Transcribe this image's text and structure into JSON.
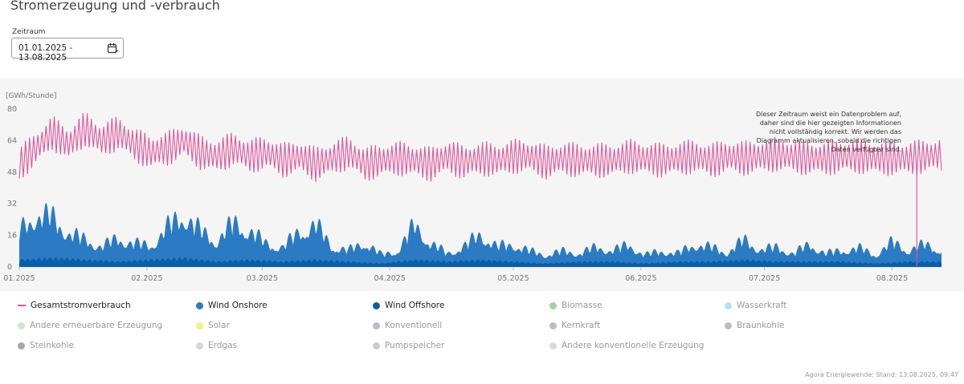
{
  "page": {
    "title": "Stromerzeugung und -verbrauch",
    "period_label": "Zeitraum",
    "period_value": "01.01.2025 - 13.08.2025",
    "footer": "Agora Energiewende; Stand: 13.08.2025, 09:47"
  },
  "chart_data": {
    "type": "area",
    "ylabel": "[GWh/Stunde]",
    "ylim": [
      0,
      80
    ],
    "yticks": [
      0,
      16,
      32,
      48,
      64,
      80
    ],
    "x_ticks": [
      "01.2025",
      "02.2025",
      "03.2025",
      "04.2025",
      "05.2025",
      "06.2025",
      "07.2025",
      "08.2025"
    ],
    "x_range": [
      "2025-01-01",
      "2025-08-13"
    ],
    "grid": false,
    "legend_position": "bottom",
    "annotation": "Dieser Zeitraum weist ein Datenproblem auf, daher sind die hier gezeigten Informationen nicht vollständig korrekt. Wir werden das Diagramm aktualisieren, sobald die richtigen Daten verfügbar sind.",
    "series": [
      {
        "name": "Gesamtstromverbrauch",
        "kind": "line",
        "color": "#e0559a",
        "values": [
          [
            0,
            52
          ],
          [
            4,
            60
          ],
          [
            8,
            68
          ],
          [
            12,
            62
          ],
          [
            16,
            70
          ],
          [
            20,
            64
          ],
          [
            24,
            68
          ],
          [
            28,
            62
          ],
          [
            32,
            58
          ],
          [
            36,
            60
          ],
          [
            40,
            64
          ],
          [
            44,
            58
          ],
          [
            48,
            56
          ],
          [
            52,
            60
          ],
          [
            56,
            56
          ],
          [
            60,
            58
          ],
          [
            64,
            54
          ],
          [
            68,
            56
          ],
          [
            72,
            52
          ],
          [
            76,
            55
          ],
          [
            80,
            58
          ],
          [
            84,
            52
          ],
          [
            88,
            54
          ],
          [
            92,
            55
          ],
          [
            96,
            54
          ],
          [
            100,
            52
          ],
          [
            104,
            56
          ],
          [
            108,
            53
          ],
          [
            112,
            55
          ],
          [
            116,
            54
          ],
          [
            120,
            56
          ],
          [
            124,
            56
          ],
          [
            128,
            53
          ],
          [
            132,
            55
          ],
          [
            136,
            54
          ],
          [
            140,
            54
          ],
          [
            144,
            54
          ],
          [
            148,
            56
          ],
          [
            152,
            55
          ],
          [
            156,
            54
          ],
          [
            160,
            55
          ],
          [
            164,
            56
          ],
          [
            168,
            54
          ],
          [
            172,
            56
          ],
          [
            176,
            55
          ],
          [
            180,
            56
          ],
          [
            184,
            57
          ],
          [
            188,
            56
          ],
          [
            192,
            55
          ],
          [
            196,
            55
          ],
          [
            200,
            56
          ],
          [
            204,
            56
          ],
          [
            208,
            55
          ],
          [
            212,
            55
          ],
          [
            216,
            55
          ],
          [
            220,
            56
          ],
          [
            224,
            57
          ]
        ]
      },
      {
        "name": "Wind Onshore",
        "kind": "area",
        "color": "#2a7bc4",
        "values": [
          [
            0,
            20
          ],
          [
            4,
            30
          ],
          [
            8,
            28
          ],
          [
            12,
            18
          ],
          [
            16,
            14
          ],
          [
            20,
            10
          ],
          [
            24,
            16
          ],
          [
            28,
            12
          ],
          [
            32,
            10
          ],
          [
            36,
            22
          ],
          [
            40,
            30
          ],
          [
            44,
            20
          ],
          [
            48,
            14
          ],
          [
            52,
            26
          ],
          [
            56,
            20
          ],
          [
            60,
            12
          ],
          [
            64,
            10
          ],
          [
            68,
            20
          ],
          [
            72,
            24
          ],
          [
            76,
            10
          ],
          [
            80,
            8
          ],
          [
            84,
            14
          ],
          [
            88,
            6
          ],
          [
            92,
            8
          ],
          [
            96,
            24
          ],
          [
            100,
            12
          ],
          [
            104,
            6
          ],
          [
            108,
            10
          ],
          [
            112,
            18
          ],
          [
            116,
            10
          ],
          [
            120,
            12
          ],
          [
            124,
            8
          ],
          [
            128,
            6
          ],
          [
            132,
            8
          ],
          [
            136,
            6
          ],
          [
            140,
            10
          ],
          [
            144,
            8
          ],
          [
            148,
            12
          ],
          [
            152,
            6
          ],
          [
            156,
            8
          ],
          [
            160,
            6
          ],
          [
            164,
            12
          ],
          [
            168,
            10
          ],
          [
            172,
            6
          ],
          [
            176,
            14
          ],
          [
            180,
            8
          ],
          [
            184,
            10
          ],
          [
            188,
            6
          ],
          [
            192,
            12
          ],
          [
            196,
            6
          ],
          [
            200,
            8
          ],
          [
            204,
            10
          ],
          [
            208,
            6
          ],
          [
            212,
            14
          ],
          [
            216,
            8
          ],
          [
            220,
            12
          ],
          [
            224,
            8
          ]
        ]
      },
      {
        "name": "Wind Offshore",
        "kind": "area",
        "color": "#0b5ea8",
        "values": [
          [
            0,
            4
          ],
          [
            8,
            5
          ],
          [
            16,
            4
          ],
          [
            24,
            3
          ],
          [
            32,
            4
          ],
          [
            40,
            5
          ],
          [
            48,
            3
          ],
          [
            56,
            4
          ],
          [
            64,
            3
          ],
          [
            72,
            4
          ],
          [
            80,
            3
          ],
          [
            88,
            2
          ],
          [
            96,
            4
          ],
          [
            104,
            3
          ],
          [
            112,
            4
          ],
          [
            120,
            3
          ],
          [
            128,
            2
          ],
          [
            136,
            3
          ],
          [
            144,
            3
          ],
          [
            152,
            2
          ],
          [
            160,
            3
          ],
          [
            168,
            3
          ],
          [
            176,
            4
          ],
          [
            184,
            3
          ],
          [
            192,
            3
          ],
          [
            200,
            3
          ],
          [
            208,
            2
          ],
          [
            216,
            3
          ],
          [
            224,
            3
          ]
        ]
      },
      {
        "name": "Biomasse",
        "kind": "area",
        "color": "#9fd3a0",
        "inactive": true
      },
      {
        "name": "Wasserkraft",
        "kind": "area",
        "color": "#b7e0f7",
        "inactive": true
      },
      {
        "name": "Andere erneuerbare Erzeugung",
        "kind": "area",
        "color": "#c9ecc6",
        "inactive": true
      },
      {
        "name": "Solar",
        "kind": "area",
        "color": "#f6ef82",
        "inactive": true
      },
      {
        "name": "Konventionell",
        "kind": "area",
        "color": "#b9bccc",
        "inactive": true
      },
      {
        "name": "Kernkraft",
        "kind": "area",
        "color": "#bdbdbd",
        "inactive": true
      },
      {
        "name": "Braunkohle",
        "kind": "area",
        "color": "#bdbdbd",
        "inactive": true
      },
      {
        "name": "Steinkohle",
        "kind": "area",
        "color": "#a8a8a8",
        "inactive": true
      },
      {
        "name": "Erdgas",
        "kind": "area",
        "color": "#d6d6d6",
        "inactive": true
      },
      {
        "name": "Pumpspeicher",
        "kind": "area",
        "color": "#c8cad6",
        "inactive": true
      },
      {
        "name": "Andere konventionelle Erzeugung",
        "kind": "area",
        "color": "#dadada",
        "inactive": true
      }
    ]
  }
}
